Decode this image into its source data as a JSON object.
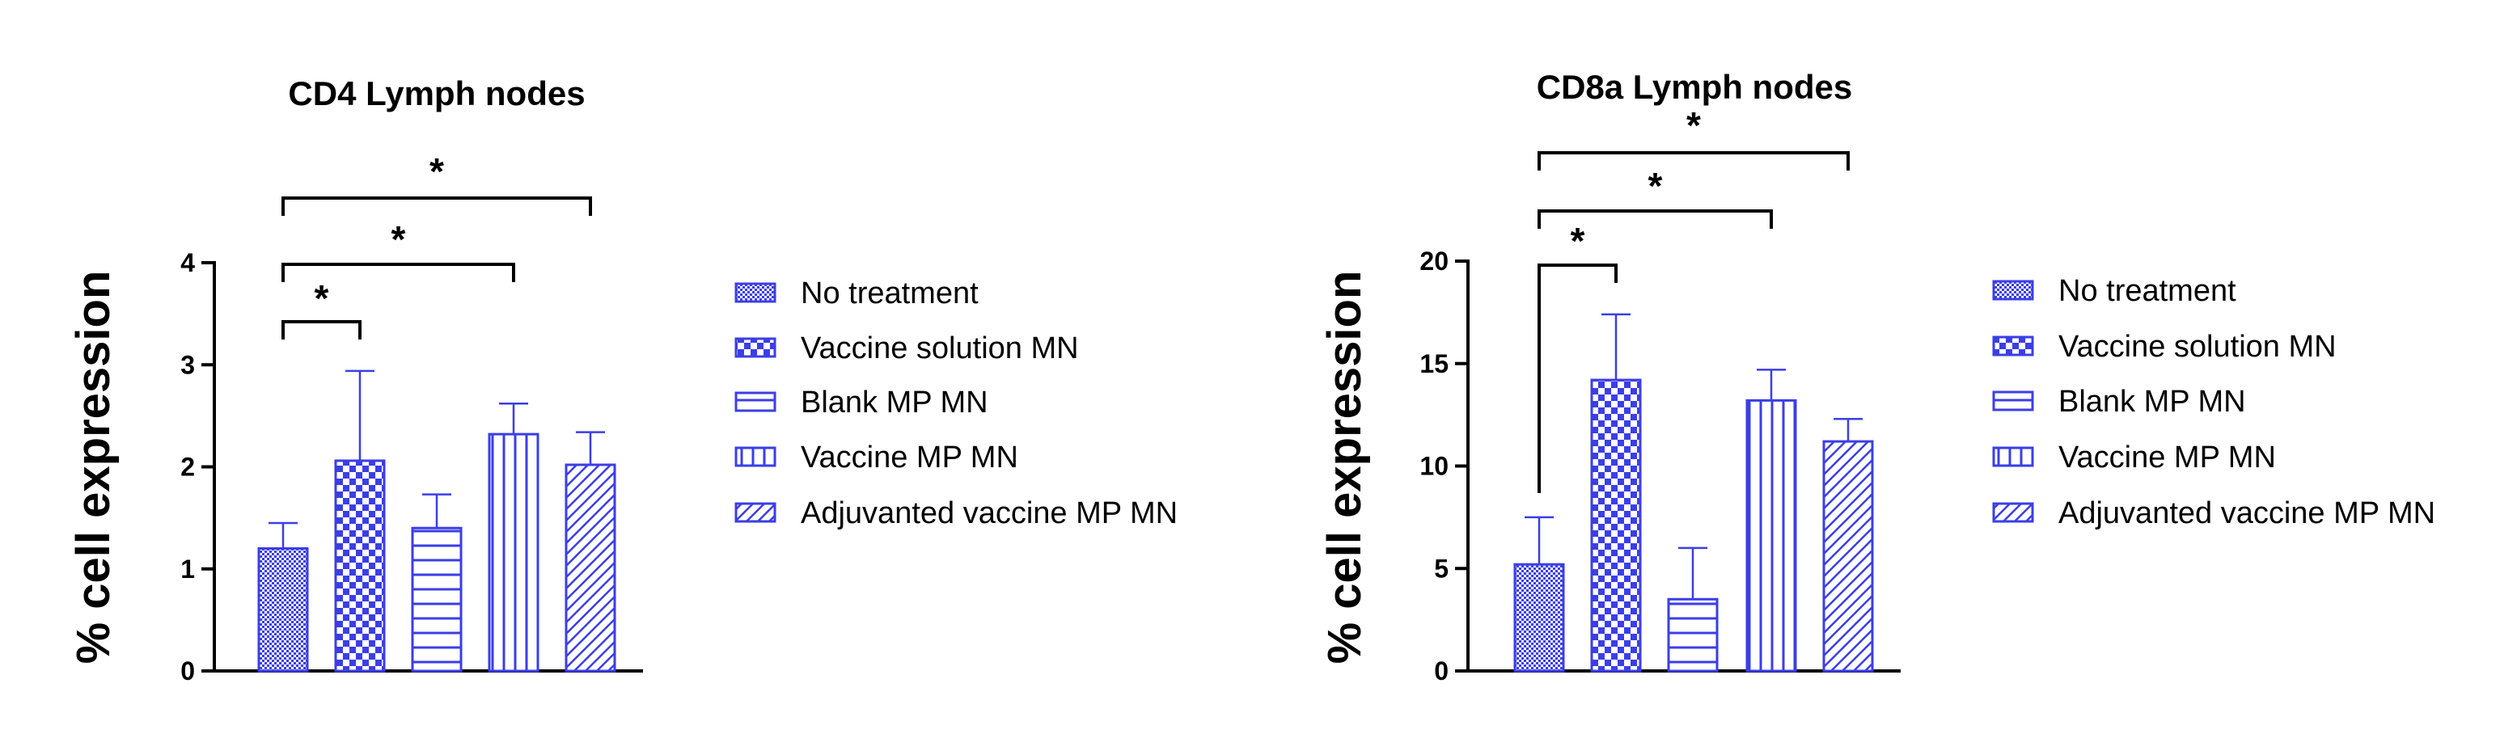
{
  "colors": {
    "bar": "#3b3ee6",
    "axis": "#000000"
  },
  "legend": [
    "No treatment",
    "Vaccine solution MN",
    "Blank MP MN",
    "Vaccine MP MN",
    "Adjuvanted vaccine MP MN"
  ],
  "chart_data": [
    {
      "type": "bar",
      "title": "CD4 Lymph nodes",
      "ylabel": "% cell expression",
      "ylim": [
        0,
        4
      ],
      "yticks": [
        0,
        1,
        2,
        3,
        4
      ],
      "categories": [
        "No treatment",
        "Vaccine solution MN",
        "Blank MP MN",
        "Vaccine MP MN",
        "Adjuvanted vaccine MP MN"
      ],
      "patterns": [
        "crosshatch",
        "checker",
        "horizontal",
        "vertical",
        "diagonal"
      ],
      "values": [
        1.2,
        2.06,
        1.4,
        2.32,
        2.02
      ],
      "errors": [
        0.25,
        0.88,
        0.33,
        0.3,
        0.32
      ],
      "significance": [
        {
          "from": 0,
          "to": 1,
          "label": "*"
        },
        {
          "from": 0,
          "to": 3,
          "label": "*"
        },
        {
          "from": 0,
          "to": 4,
          "label": "*"
        }
      ]
    },
    {
      "type": "bar",
      "title": "CD8a Lymph nodes",
      "ylabel": "% cell expression",
      "ylim": [
        0,
        20
      ],
      "yticks": [
        0,
        5,
        10,
        15,
        20
      ],
      "categories": [
        "No treatment",
        "Vaccine solution MN",
        "Blank MP MN",
        "Vaccine MP MN",
        "Adjuvanted vaccine MP MN"
      ],
      "patterns": [
        "crosshatch",
        "checker",
        "horizontal",
        "vertical",
        "diagonal"
      ],
      "values": [
        5.2,
        14.2,
        3.5,
        13.2,
        11.2
      ],
      "errors": [
        2.3,
        3.2,
        2.5,
        1.5,
        1.1
      ],
      "significance": [
        {
          "from": 0,
          "to": 1,
          "label": "*"
        },
        {
          "from": 0,
          "to": 3,
          "label": "*"
        },
        {
          "from": 0,
          "to": 4,
          "label": "*"
        }
      ]
    }
  ]
}
